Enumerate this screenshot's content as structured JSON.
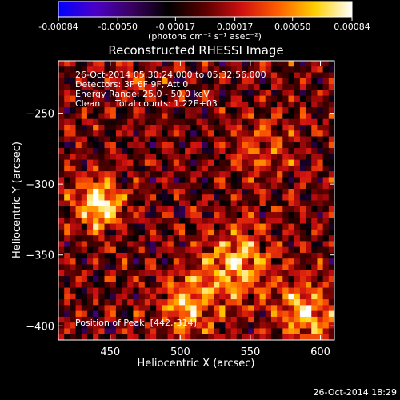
{
  "colorbar": {
    "ticks": [
      "-0.00084",
      "-0.00050",
      "-0.00017",
      "0.00017",
      "0.00050",
      "0.00084"
    ],
    "tick_values": [
      -0.00084,
      -0.0005,
      -0.00017,
      0.00017,
      0.0005,
      0.00084
    ],
    "unit_label": "(photons cm⁻² s⁻¹ asec⁻²)",
    "colors": [
      "#0000ff",
      "#4b00c8",
      "#3a0060",
      "#000000",
      "#5a0000",
      "#d01010",
      "#ff6000",
      "#ffd000",
      "#ffffff"
    ]
  },
  "title": "Reconstructed RHESSI Image",
  "info": {
    "time": "26-Oct-2014 05:30:24.000 to 05:32:56.000",
    "detectors": "Detectors: 3F 6F 9F, Att 0",
    "energy": "Energy Range: 25.0 - 50.0 keV",
    "clean": "Clean",
    "counts": "Total counts: 1.22E+03",
    "peak": "Position of Peak: [442,-314]"
  },
  "footer_timestamp": "26-Oct-2014 18:29",
  "chart_data": {
    "type": "heatmap",
    "title": "Reconstructed RHESSI Image",
    "xlabel": "Heliocentric X (arcsec)",
    "ylabel": "Heliocentric Y (arcsec)",
    "xlim": [
      413,
      610
    ],
    "ylim": [
      -410,
      -213
    ],
    "xticks": [
      450,
      500,
      550,
      600
    ],
    "yticks": [
      -400,
      -350,
      -300,
      -250
    ],
    "xtick_labels": [
      "450",
      "500",
      "550",
      "600"
    ],
    "ytick_labels": [
      "−400",
      "−350",
      "−300",
      "−250"
    ],
    "grid_cols": 48,
    "grid_rows": 48,
    "background_level": 0.2,
    "noise_amplitude": 0.18,
    "sources": [
      {
        "x": 442,
        "y": -314,
        "peak": 0.00084,
        "sigma": 12
      },
      {
        "x": 540,
        "y": -358,
        "peak": 0.0006,
        "sigma": 18
      },
      {
        "x": 590,
        "y": -390,
        "peak": 0.0006,
        "sigma": 14
      },
      {
        "x": 505,
        "y": -385,
        "peak": 0.0005,
        "sigma": 14
      },
      {
        "x": 560,
        "y": -275,
        "peak": 0.00035,
        "sigma": 14
      },
      {
        "x": 470,
        "y": -230,
        "peak": 0.00025,
        "sigma": 10
      }
    ],
    "grid": false
  }
}
